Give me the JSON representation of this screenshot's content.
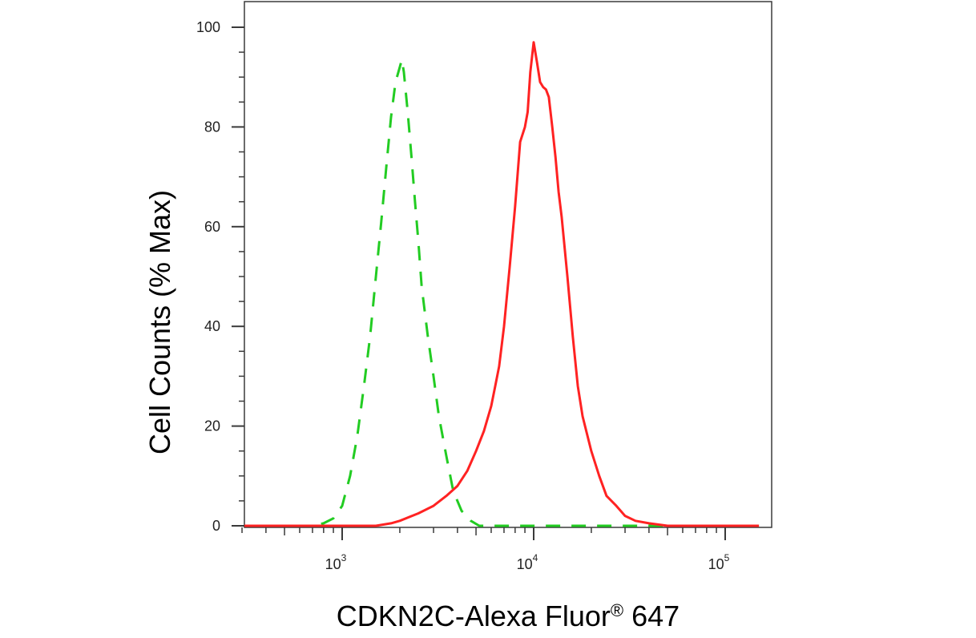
{
  "chart_data": {
    "type": "line",
    "title": "",
    "xlabel": "CDKN2C-Alexa Fluor",
    "xlabel_mark": "®",
    "xlabel_suffix": " 647",
    "ylabel": "Cell Counts (% Max)",
    "xscale": "log",
    "xlim": [
      300,
      150000
    ],
    "ylim": [
      0,
      100
    ],
    "grid": false,
    "legend": "none",
    "x_ticks": [
      {
        "value": 1000,
        "base": "10",
        "exp": "3"
      },
      {
        "value": 10000,
        "base": "10",
        "exp": "4"
      },
      {
        "value": 100000,
        "base": "10",
        "exp": "5"
      }
    ],
    "y_ticks": [
      0,
      20,
      40,
      60,
      80,
      100
    ],
    "series": [
      {
        "color": "#22cc22",
        "dash": "dashed",
        "x": [
          300,
          500,
          700,
          800,
          900,
          1000,
          1100,
          1200,
          1300,
          1400,
          1500,
          1600,
          1700,
          1800,
          1900,
          2000,
          2050,
          2100,
          2200,
          2300,
          2400,
          2500,
          2600,
          2800,
          3000,
          3200,
          3500,
          3800,
          4200,
          4700,
          5200,
          6000,
          8000,
          20000,
          60000,
          150000
        ],
        "y": [
          0,
          0,
          0,
          0.5,
          1.5,
          4,
          10,
          18,
          28,
          38,
          50,
          61,
          72,
          82,
          89,
          92,
          93.5,
          91,
          83,
          74,
          65,
          57,
          48,
          38,
          30,
          22,
          14,
          7,
          3,
          1,
          0,
          0,
          0,
          0,
          0,
          0
        ]
      },
      {
        "color": "#ff2222",
        "dash": "solid",
        "x": [
          300,
          1500,
          1800,
          2000,
          2500,
          3000,
          3500,
          4000,
          4500,
          5000,
          5500,
          6000,
          6300,
          6600,
          7000,
          7500,
          8000,
          8500,
          9000,
          9300,
          9600,
          10000,
          10400,
          10800,
          11200,
          11600,
          12000,
          12500,
          13000,
          13500,
          14000,
          15000,
          16000,
          17000,
          18000,
          20000,
          22000,
          24000,
          27000,
          30000,
          34000,
          40000,
          50000,
          150000
        ],
        "y": [
          0,
          0,
          0.5,
          1,
          2.5,
          4,
          6,
          8,
          11,
          15,
          19,
          24,
          28,
          32,
          40,
          52,
          64,
          77,
          80,
          83,
          91,
          97,
          93,
          89,
          88,
          87.5,
          86,
          80,
          74,
          67,
          62,
          50,
          38,
          28,
          22,
          15,
          10,
          6,
          4,
          2,
          1,
          0.5,
          0,
          0
        ]
      }
    ]
  }
}
